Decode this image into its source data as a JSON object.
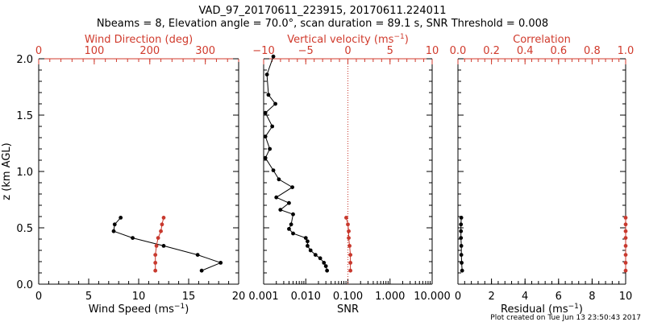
{
  "title_line1": "VAD_97_20170611_223915, 20170611.224011",
  "title_line2": "Nbeams = 8, Elevation angle = 70.0°, scan duration = 89.1 s, SNR Threshold = 0.008",
  "footer": "Plot created on Tue Jun 13 23:50:43 2017",
  "colors": {
    "axis": "#000000",
    "accent": "#d03a2c",
    "series_black": "#000000",
    "series_red": "#c8392e"
  },
  "chart_data": [
    {
      "type": "line",
      "panel": "wind",
      "ylabel": "z (km AGL)",
      "ylim": [
        0,
        2
      ],
      "yticks": [
        0.0,
        0.5,
        1.0,
        1.5,
        2.0
      ],
      "ytick_labels": [
        "0.0",
        "0.5",
        "1.0",
        "1.5",
        "2.0"
      ],
      "xlabel": "Wind Speed (ms",
      "xlabel_sup": "−1",
      "xlabel_tail": ")",
      "xlim": [
        0,
        20
      ],
      "xticks": [
        0,
        5,
        10,
        15,
        20
      ],
      "xtick_labels": [
        "0",
        "5",
        "10",
        "15",
        "20"
      ],
      "top_label": "Wind Direction (deg)",
      "top_lim": [
        0,
        360
      ],
      "top_ticks": [
        0,
        100,
        200,
        300
      ],
      "top_tick_labels": [
        "0",
        "100",
        "200",
        "300"
      ],
      "series": [
        {
          "axis": "bottom",
          "color": "black",
          "x": [
            16.3,
            18.2,
            15.9,
            12.5,
            9.4,
            7.5,
            7.6,
            8.2
          ],
          "y": [
            0.12,
            0.19,
            0.26,
            0.34,
            0.41,
            0.47,
            0.53,
            0.59
          ]
        },
        {
          "axis": "top",
          "color": "red",
          "x": [
            210,
            210,
            210,
            212,
            215,
            220,
            222,
            225
          ],
          "y": [
            0.12,
            0.19,
            0.26,
            0.34,
            0.41,
            0.47,
            0.53,
            0.59
          ]
        }
      ]
    },
    {
      "type": "line",
      "panel": "snr",
      "xscale": "log",
      "ylim": [
        0,
        2
      ],
      "xlabel": "SNR",
      "xlim": [
        0.001,
        10
      ],
      "xticks": [
        0.001,
        0.01,
        0.1,
        1,
        10
      ],
      "xtick_labels": [
        "0.001",
        "0.010",
        "0.100",
        "1.000",
        "10.000"
      ],
      "top_label": "Vertical velocity (ms",
      "top_label_sup": "−1",
      "top_label_tail": ")",
      "top_lim": [
        -10,
        10
      ],
      "top_ticks": [
        -10,
        -5,
        0,
        5,
        10
      ],
      "top_tick_labels": [
        "−10",
        "−5",
        "0",
        "5",
        "10"
      ],
      "series": [
        {
          "axis": "bottom",
          "color": "black",
          "x": [
            0.032,
            0.03,
            0.027,
            0.022,
            0.017,
            0.013,
            0.011,
            0.011,
            0.01,
            0.005,
            0.004,
            0.0045,
            0.005,
            0.0025,
            0.004,
            0.002,
            0.0048,
            0.0023,
            0.0017,
            0.0011,
            0.0014,
            0.0011,
            0.0016,
            0.0011,
            0.0019,
            0.0013,
            0.0012,
            0.0017
          ],
          "y": [
            0.12,
            0.16,
            0.19,
            0.23,
            0.26,
            0.3,
            0.34,
            0.38,
            0.41,
            0.45,
            0.49,
            0.53,
            0.62,
            0.66,
            0.72,
            0.77,
            0.86,
            0.93,
            1.01,
            1.12,
            1.2,
            1.31,
            1.4,
            1.52,
            1.6,
            1.68,
            1.86,
            2.02
          ]
        },
        {
          "axis": "top",
          "color": "red",
          "x": [
            0.3,
            0.3,
            0.3,
            0.2,
            0.1,
            0.1,
            0,
            -0.2
          ],
          "y": [
            0.12,
            0.19,
            0.26,
            0.34,
            0.41,
            0.47,
            0.53,
            0.59
          ]
        }
      ],
      "reference_line": {
        "axis": "top",
        "x": 0,
        "style": "dotted",
        "color": "red"
      }
    },
    {
      "type": "line",
      "panel": "residual",
      "ylim": [
        0,
        2
      ],
      "xlabel": "Residual (ms",
      "xlabel_sup": "−1",
      "xlabel_tail": ")",
      "xlim": [
        0,
        10
      ],
      "xticks": [
        0,
        2,
        4,
        6,
        8,
        10
      ],
      "xtick_labels": [
        "0",
        "2",
        "4",
        "6",
        "8",
        "10"
      ],
      "top_label": "Correlation",
      "top_lim": [
        0,
        1
      ],
      "top_ticks": [
        0,
        0.2,
        0.4,
        0.6,
        0.8,
        1.0
      ],
      "top_tick_labels": [
        "0.0",
        "0.2",
        "0.4",
        "0.6",
        "0.8",
        "1.0"
      ],
      "series": [
        {
          "axis": "bottom",
          "color": "black",
          "x": [
            0.25,
            0.22,
            0.2,
            0.2,
            0.18,
            0.18,
            0.18,
            0.2
          ],
          "y": [
            0.12,
            0.19,
            0.26,
            0.34,
            0.41,
            0.47,
            0.53,
            0.59
          ]
        },
        {
          "axis": "top",
          "color": "red",
          "x": [
            1.0,
            1.0,
            1.0,
            1.0,
            1.0,
            1.0,
            1.0,
            1.0
          ],
          "y": [
            0.12,
            0.19,
            0.26,
            0.34,
            0.41,
            0.47,
            0.53,
            0.59
          ]
        }
      ]
    }
  ]
}
